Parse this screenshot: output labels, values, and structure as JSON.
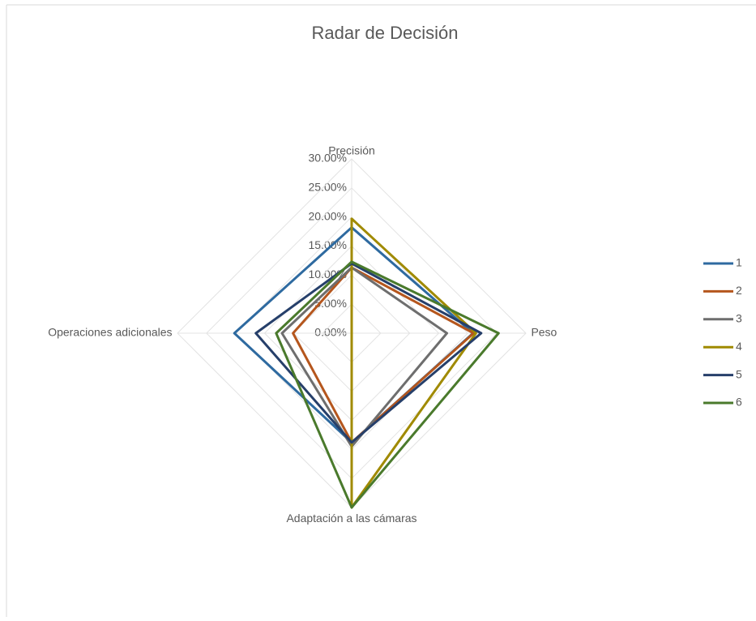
{
  "chart_data": {
    "type": "radar",
    "title": "Radar de Decisión",
    "categories": [
      "Precisión",
      "Peso",
      "Adaptación a las cámaras",
      "Operaciones adicionales"
    ],
    "series": [
      {
        "name": "1",
        "color": "#2e6aa0",
        "values": [
          18.2,
          20.9,
          18.8,
          20.2
        ]
      },
      {
        "name": "2",
        "color": "#b5561d",
        "values": [
          11.3,
          21,
          18.8,
          10.1
        ]
      },
      {
        "name": "3",
        "color": "#6e6e6e",
        "values": [
          11.3,
          16.4,
          19.5,
          12
        ]
      },
      {
        "name": "4",
        "color": "#a08a00",
        "values": [
          19.7,
          21.4,
          30,
          0
        ]
      },
      {
        "name": "5",
        "color": "#263f6a",
        "values": [
          12,
          22.3,
          18.8,
          16.5
        ]
      },
      {
        "name": "6",
        "color": "#4a7a2c",
        "values": [
          12.3,
          25.3,
          30,
          13
        ]
      }
    ],
    "ylim": [
      0,
      30
    ],
    "yticks": [
      {
        "value": 0,
        "label": "0.00%"
      },
      {
        "value": 5,
        "label": "5.00%"
      },
      {
        "value": 10,
        "label": "10.00%"
      },
      {
        "value": 15,
        "label": "15.00%"
      },
      {
        "value": 20,
        "label": "20.00%"
      },
      {
        "value": 25,
        "label": "25.00%"
      },
      {
        "value": 30,
        "label": "30.00%"
      }
    ],
    "grid": true,
    "legend": "right"
  }
}
